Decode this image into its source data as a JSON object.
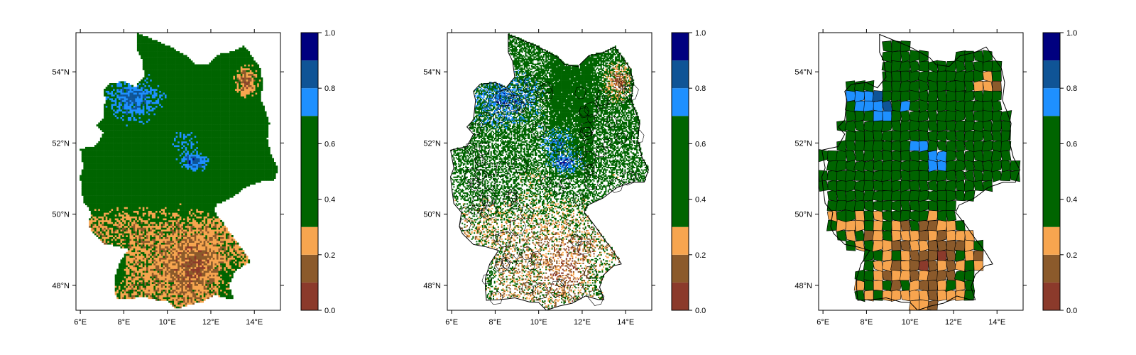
{
  "chart_data": [
    {
      "type": "heatmap",
      "variant": "gridded raster",
      "xaxis": {
        "ticks": [
          6,
          8,
          10,
          12,
          14
        ],
        "tick_labels": [
          "6°E",
          "8°E",
          "10°E",
          "12°E",
          "14°E"
        ],
        "range": [
          5.8,
          15.2
        ]
      },
      "yaxis": {
        "ticks": [
          48,
          50,
          52,
          54
        ],
        "tick_labels": [
          "48°N",
          "50°N",
          "52°N",
          "54°N"
        ],
        "range": [
          47.3,
          55.1
        ]
      },
      "colorbar": {
        "breaks": [
          0.0,
          0.1,
          0.2,
          0.3,
          0.7,
          0.8,
          0.9,
          1.0
        ],
        "colors": [
          "#8b3a2b",
          "#8b5a2b",
          "#f7a54f",
          "#006400",
          "#1e90ff",
          "#0f5496",
          "#00007f"
        ],
        "tick_values": [
          0.0,
          0.2,
          0.4,
          0.6,
          0.8,
          1.0
        ],
        "tick_labels": [
          "0.0",
          "0.2",
          "0.4",
          "0.6",
          "0.8",
          "1.0"
        ]
      }
    },
    {
      "type": "heatmap",
      "variant": "sparse raster with district boundaries",
      "xaxis": {
        "ticks": [
          6,
          8,
          10,
          12,
          14
        ],
        "tick_labels": [
          "6°E",
          "8°E",
          "10°E",
          "12°E",
          "14°E"
        ],
        "range": [
          5.8,
          15.2
        ]
      },
      "yaxis": {
        "ticks": [
          48,
          50,
          52,
          54
        ],
        "tick_labels": [
          "48°N",
          "50°N",
          "52°N",
          "54°N"
        ],
        "range": [
          47.3,
          55.1
        ]
      },
      "colorbar": {
        "breaks": [
          0.0,
          0.1,
          0.2,
          0.3,
          0.7,
          0.8,
          0.9,
          1.0
        ],
        "colors": [
          "#8b3a2b",
          "#8b5a2b",
          "#f7a54f",
          "#006400",
          "#1e90ff",
          "#0f5496",
          "#00007f"
        ],
        "tick_values": [
          0.0,
          0.2,
          0.4,
          0.6,
          0.8,
          1.0
        ],
        "tick_labels": [
          "0.0",
          "0.2",
          "0.4",
          "0.6",
          "0.8",
          "1.0"
        ]
      }
    },
    {
      "type": "heatmap",
      "variant": "district choropleth",
      "xaxis": {
        "ticks": [
          6,
          8,
          10,
          12,
          14
        ],
        "tick_labels": [
          "6°E",
          "8°E",
          "10°E",
          "12°E",
          "14°E"
        ],
        "range": [
          5.8,
          15.2
        ]
      },
      "yaxis": {
        "ticks": [
          48,
          50,
          52,
          54
        ],
        "tick_labels": [
          "48°N",
          "50°N",
          "52°N",
          "54°N"
        ],
        "range": [
          47.3,
          55.1
        ]
      },
      "colorbar": {
        "breaks": [
          0.0,
          0.1,
          0.2,
          0.3,
          0.7,
          0.8,
          0.9,
          1.0
        ],
        "colors": [
          "#8b3a2b",
          "#8b5a2b",
          "#f7a54f",
          "#006400",
          "#1e90ff",
          "#0f5496",
          "#00007f"
        ],
        "tick_values": [
          0.0,
          0.2,
          0.4,
          0.6,
          0.8,
          1.0
        ],
        "tick_labels": [
          "0.0",
          "0.2",
          "0.4",
          "0.6",
          "0.8",
          "1.0"
        ]
      }
    }
  ]
}
